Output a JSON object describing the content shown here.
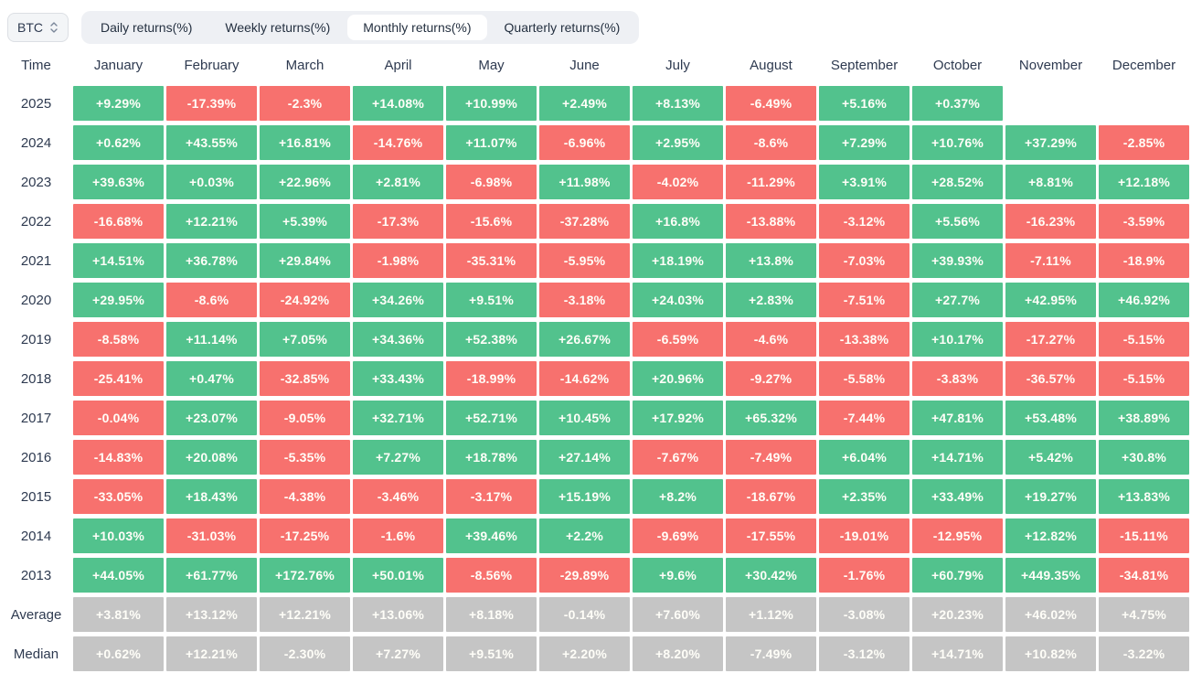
{
  "coin_selector": {
    "label": "BTC"
  },
  "tabs": [
    {
      "label": "Daily returns(%)",
      "active": false
    },
    {
      "label": "Weekly returns(%)",
      "active": false
    },
    {
      "label": "Monthly returns(%)",
      "active": true
    },
    {
      "label": "Quarterly returns(%)",
      "active": false
    }
  ],
  "table_header": {
    "time": "Time"
  },
  "colors": {
    "positive": "#52c28d",
    "negative": "#f7716e",
    "summary": "#c5c5c5",
    "cell_text": "#fffef8",
    "tab_bar_bg": "#eef0f4",
    "active_tab_bg": "#ffffff",
    "chip_bg": "#f3f5f7",
    "chip_border": "#dcdfe4",
    "header_text": "#2e3a50"
  },
  "chart_data": {
    "type": "heatmap",
    "title": "Monthly returns(%)",
    "unit": "%",
    "columns": [
      "January",
      "February",
      "March",
      "April",
      "May",
      "June",
      "July",
      "August",
      "September",
      "October",
      "November",
      "December"
    ],
    "rows": [
      {
        "label": "2025",
        "kind": "year",
        "values": [
          "+9.29%",
          "-17.39%",
          "-2.3%",
          "+14.08%",
          "+10.99%",
          "+2.49%",
          "+8.13%",
          "-6.49%",
          "+5.16%",
          "+0.37%",
          null,
          null
        ]
      },
      {
        "label": "2024",
        "kind": "year",
        "values": [
          "+0.62%",
          "+43.55%",
          "+16.81%",
          "-14.76%",
          "+11.07%",
          "-6.96%",
          "+2.95%",
          "-8.6%",
          "+7.29%",
          "+10.76%",
          "+37.29%",
          "-2.85%"
        ]
      },
      {
        "label": "2023",
        "kind": "year",
        "values": [
          "+39.63%",
          "+0.03%",
          "+22.96%",
          "+2.81%",
          "-6.98%",
          "+11.98%",
          "-4.02%",
          "-11.29%",
          "+3.91%",
          "+28.52%",
          "+8.81%",
          "+12.18%"
        ]
      },
      {
        "label": "2022",
        "kind": "year",
        "values": [
          "-16.68%",
          "+12.21%",
          "+5.39%",
          "-17.3%",
          "-15.6%",
          "-37.28%",
          "+16.8%",
          "-13.88%",
          "-3.12%",
          "+5.56%",
          "-16.23%",
          "-3.59%"
        ]
      },
      {
        "label": "2021",
        "kind": "year",
        "values": [
          "+14.51%",
          "+36.78%",
          "+29.84%",
          "-1.98%",
          "-35.31%",
          "-5.95%",
          "+18.19%",
          "+13.8%",
          "-7.03%",
          "+39.93%",
          "-7.11%",
          "-18.9%"
        ]
      },
      {
        "label": "2020",
        "kind": "year",
        "values": [
          "+29.95%",
          "-8.6%",
          "-24.92%",
          "+34.26%",
          "+9.51%",
          "-3.18%",
          "+24.03%",
          "+2.83%",
          "-7.51%",
          "+27.7%",
          "+42.95%",
          "+46.92%"
        ]
      },
      {
        "label": "2019",
        "kind": "year",
        "values": [
          "-8.58%",
          "+11.14%",
          "+7.05%",
          "+34.36%",
          "+52.38%",
          "+26.67%",
          "-6.59%",
          "-4.6%",
          "-13.38%",
          "+10.17%",
          "-17.27%",
          "-5.15%"
        ]
      },
      {
        "label": "2018",
        "kind": "year",
        "values": [
          "-25.41%",
          "+0.47%",
          "-32.85%",
          "+33.43%",
          "-18.99%",
          "-14.62%",
          "+20.96%",
          "-9.27%",
          "-5.58%",
          "-3.83%",
          "-36.57%",
          "-5.15%"
        ]
      },
      {
        "label": "2017",
        "kind": "year",
        "values": [
          "-0.04%",
          "+23.07%",
          "-9.05%",
          "+32.71%",
          "+52.71%",
          "+10.45%",
          "+17.92%",
          "+65.32%",
          "-7.44%",
          "+47.81%",
          "+53.48%",
          "+38.89%"
        ]
      },
      {
        "label": "2016",
        "kind": "year",
        "values": [
          "-14.83%",
          "+20.08%",
          "-5.35%",
          "+7.27%",
          "+18.78%",
          "+27.14%",
          "-7.67%",
          "-7.49%",
          "+6.04%",
          "+14.71%",
          "+5.42%",
          "+30.8%"
        ]
      },
      {
        "label": "2015",
        "kind": "year",
        "values": [
          "-33.05%",
          "+18.43%",
          "-4.38%",
          "-3.46%",
          "-3.17%",
          "+15.19%",
          "+8.2%",
          "-18.67%",
          "+2.35%",
          "+33.49%",
          "+19.27%",
          "+13.83%"
        ]
      },
      {
        "label": "2014",
        "kind": "year",
        "values": [
          "+10.03%",
          "-31.03%",
          "-17.25%",
          "-1.6%",
          "+39.46%",
          "+2.2%",
          "-9.69%",
          "-17.55%",
          "-19.01%",
          "-12.95%",
          "+12.82%",
          "-15.11%"
        ]
      },
      {
        "label": "2013",
        "kind": "year",
        "values": [
          "+44.05%",
          "+61.77%",
          "+172.76%",
          "+50.01%",
          "-8.56%",
          "-29.89%",
          "+9.6%",
          "+30.42%",
          "-1.76%",
          "+60.79%",
          "+449.35%",
          "-34.81%"
        ]
      },
      {
        "label": "Average",
        "kind": "summary",
        "values": [
          "+3.81%",
          "+13.12%",
          "+12.21%",
          "+13.06%",
          "+8.18%",
          "-0.14%",
          "+7.60%",
          "+1.12%",
          "-3.08%",
          "+20.23%",
          "+46.02%",
          "+4.75%"
        ]
      },
      {
        "label": "Median",
        "kind": "summary",
        "values": [
          "+0.62%",
          "+12.21%",
          "-2.30%",
          "+7.27%",
          "+9.51%",
          "+2.20%",
          "+8.20%",
          "-7.49%",
          "-3.12%",
          "+14.71%",
          "+10.82%",
          "-3.22%"
        ]
      }
    ]
  }
}
